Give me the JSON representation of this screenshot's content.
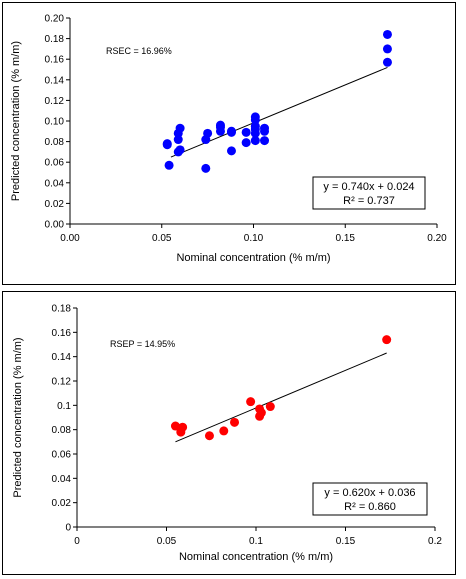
{
  "chart_data": [
    {
      "type": "scatter",
      "xlabel": "Nominal concentration (% m/m)",
      "ylabel": "Predicted concentration (% m/m)",
      "xlim": [
        0,
        0.2
      ],
      "ylim": [
        0,
        0.2
      ],
      "xticks": [
        "0.00",
        "0.05",
        "0.10",
        "0.15",
        "0.20"
      ],
      "yticks": [
        "0.00",
        "0.02",
        "0.04",
        "0.06",
        "0.08",
        "0.10",
        "0.12",
        "0.14",
        "0.16",
        "0.18",
        "0.20"
      ],
      "annotation": "RSEC = 16.96%",
      "equation": "y = 0.740x + 0.024",
      "r2": "R² = 0.737",
      "point_color": "#0000ff",
      "fit_line": {
        "x": [
          0.055,
          0.173
        ],
        "y": [
          0.065,
          0.152
        ]
      },
      "series": [
        {
          "x": [
            0.053,
            0.053,
            0.054,
            0.059,
            0.059,
            0.059,
            0.06,
            0.06,
            0.074,
            0.074,
            0.075,
            0.082,
            0.082,
            0.082,
            0.088,
            0.088,
            0.088,
            0.096,
            0.096,
            0.101,
            0.101,
            0.101,
            0.101,
            0.101,
            0.101,
            0.106,
            0.106,
            0.106,
            0.173,
            0.173,
            0.173
          ],
          "y": [
            0.077,
            0.078,
            0.057,
            0.07,
            0.082,
            0.088,
            0.093,
            0.072,
            0.054,
            0.082,
            0.088,
            0.09,
            0.094,
            0.096,
            0.071,
            0.09,
            0.089,
            0.079,
            0.089,
            0.081,
            0.088,
            0.092,
            0.095,
            0.101,
            0.104,
            0.081,
            0.09,
            0.093,
            0.157,
            0.17,
            0.184
          ]
        }
      ]
    },
    {
      "type": "scatter",
      "xlabel": "Nominal concentration (% m/m)",
      "ylabel": "Predicted concentration (% m/m)",
      "xlim": [
        0,
        0.2
      ],
      "ylim": [
        0,
        0.18
      ],
      "xticks": [
        "0",
        "0.05",
        "0.1",
        "0.15",
        "0.2"
      ],
      "yticks": [
        "0",
        "0.02",
        "0.04",
        "0.06",
        "0.08",
        "0.1",
        "0.12",
        "0.14",
        "0.16",
        "0.18"
      ],
      "annotation": "RSEP = 14.95%",
      "equation": "y = 0.620x + 0.036",
      "r2": "R² = 0.860",
      "point_color": "#ff0000",
      "fit_line": {
        "x": [
          0.055,
          0.173
        ],
        "y": [
          0.07,
          0.143
        ]
      },
      "series": [
        {
          "x": [
            0.055,
            0.058,
            0.059,
            0.074,
            0.082,
            0.088,
            0.097,
            0.102,
            0.103,
            0.102,
            0.108,
            0.173
          ],
          "y": [
            0.083,
            0.078,
            0.082,
            0.075,
            0.079,
            0.086,
            0.103,
            0.091,
            0.094,
            0.097,
            0.099,
            0.154
          ]
        }
      ]
    }
  ]
}
